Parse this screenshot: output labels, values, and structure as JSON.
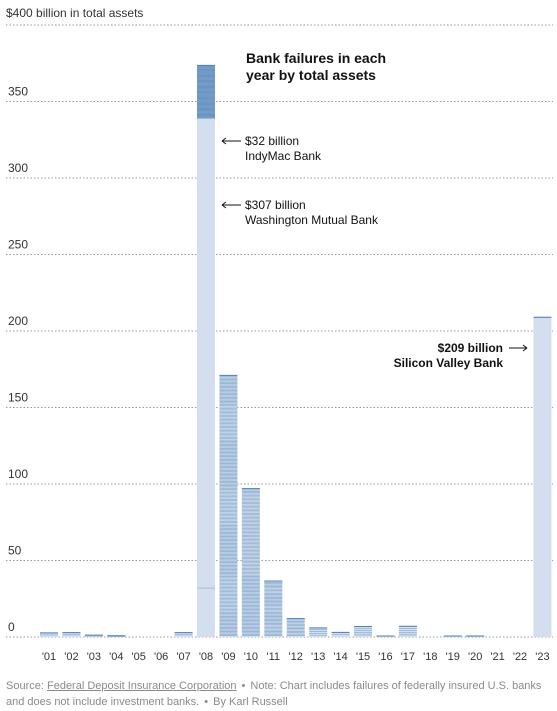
{
  "chart_data": {
    "type": "bar",
    "title": "Bank failures in each year by total assets",
    "title_lines": [
      "Bank failures in each",
      "year by total assets"
    ],
    "ylabel": "$400 billion in total assets",
    "ylim": [
      0,
      400
    ],
    "yticks": [
      0,
      50,
      100,
      150,
      200,
      250,
      300,
      350
    ],
    "ytick_labels": [
      "0",
      "50",
      "100",
      "150",
      "200",
      "250",
      "300",
      "350"
    ],
    "categories": [
      "'01",
      "'02",
      "'03",
      "'04",
      "'05",
      "'06",
      "'07",
      "'08",
      "'09",
      "'10",
      "'11",
      "'12",
      "'13",
      "'14",
      "'15",
      "'16",
      "'17",
      "'18",
      "'19",
      "'20",
      "'21",
      "'22",
      "'23"
    ],
    "values": [
      2.7,
      2.9,
      1.2,
      0.8,
      0,
      0,
      2.9,
      373.6,
      171,
      97,
      36.6,
      12,
      6,
      3,
      6.9,
      0.3,
      7,
      0,
      0.2,
      0.5,
      0,
      0,
      209
    ],
    "largest_failures": {
      "2008": [
        32,
        307
      ],
      "2023": [
        209
      ]
    },
    "annotations": [
      {
        "line1": "$32 billion",
        "line2": "IndyMac Bank",
        "arrow": "left",
        "bold": false
      },
      {
        "line1": "$307 billion",
        "line2": "Washington Mutual Bank",
        "arrow": "left",
        "bold": false
      },
      {
        "line1": "$209 billion",
        "line2": "Silicon Valley Bank",
        "arrow": "right",
        "bold": true
      }
    ],
    "grid": true,
    "colors": {
      "bar_fill": "#d3dfee",
      "bank_line": "#4d80b6",
      "grid": "#999999",
      "text": "#121212",
      "muted": "#8a8a8a"
    }
  },
  "footer": {
    "source_label": "Source:",
    "source_name": "Federal Deposit Insurance Corporation",
    "separator": "•",
    "note": "Note: Chart includes failures of federally insured U.S. banks and does not include investment banks.",
    "byline": "By Karl Russell"
  }
}
